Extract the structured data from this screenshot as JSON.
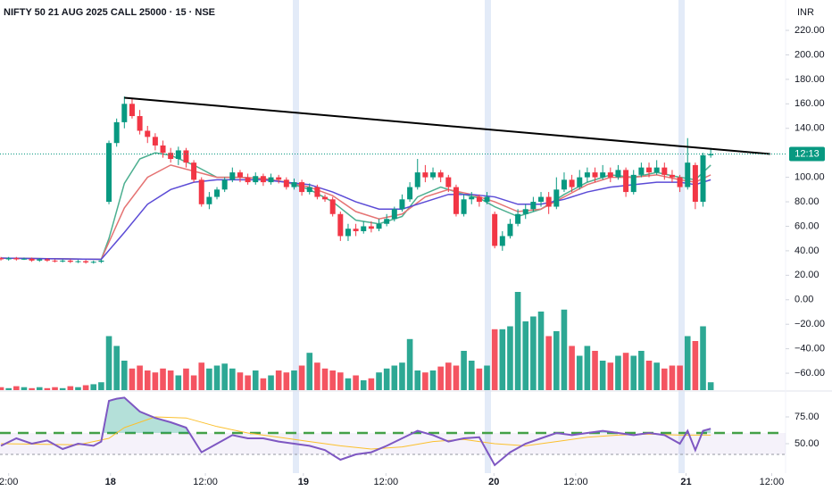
{
  "chart_data": {
    "type": "candlestick",
    "title": "NIFTY 50 21 AUG 2025 CALL 25000 · 15 · NSE",
    "currency": "INR",
    "xlim": [
      -0.12,
      101.7
    ],
    "xticks": [
      {
        "value": 1.0,
        "label": "2:00"
      },
      {
        "value": 14.2,
        "label": "18"
      },
      {
        "value": 26.5,
        "label": "12:00"
      },
      {
        "value": 39.2,
        "label": "19"
      },
      {
        "value": 49.9,
        "label": "12:00"
      },
      {
        "value": 63.9,
        "label": "20"
      },
      {
        "value": 74.5,
        "label": "12:00"
      },
      {
        "value": 88.8,
        "label": "21"
      },
      {
        "value": 99.9,
        "label": "12:00"
      }
    ],
    "ylim": [
      -73.8,
      244.8
    ],
    "yticks": [
      {
        "value": 220,
        "label": "220.00"
      },
      {
        "value": 200,
        "label": "200.00"
      },
      {
        "value": 180,
        "label": "180.00"
      },
      {
        "value": 160,
        "label": "160.00"
      },
      {
        "value": 140,
        "label": "140.00"
      },
      {
        "value": 100,
        "label": "100.00"
      },
      {
        "value": 80,
        "label": "80.00"
      },
      {
        "value": 60,
        "label": "60.00"
      },
      {
        "value": 40,
        "label": "40.00"
      },
      {
        "value": 20,
        "label": "20.00"
      },
      {
        "value": 0,
        "label": "0.00"
      },
      {
        "value": -20,
        "label": "−20.00"
      },
      {
        "value": -40,
        "label": "−40.00"
      },
      {
        "value": -60,
        "label": "−60.00"
      }
    ],
    "up_color": "#089981",
    "down_color": "#f23645",
    "open": [
      34,
      33,
      34,
      33,
      33.5,
      32,
      33,
      32,
      31.5,
      32,
      31,
      31.5,
      30.5,
      31,
      80,
      128,
      145,
      160,
      150,
      138,
      133,
      126,
      120,
      115,
      122,
      112,
      98,
      78,
      84,
      90,
      98,
      104,
      100,
      96,
      101,
      96,
      100,
      98,
      92,
      96,
      88,
      92,
      84,
      82,
      70,
      52,
      58,
      56,
      60,
      58,
      62,
      66,
      74,
      82,
      92,
      104,
      100,
      104,
      100,
      92,
      70,
      82,
      84,
      80,
      70,
      44,
      52,
      62,
      70,
      74,
      80,
      84,
      76,
      90,
      98,
      92,
      100,
      104,
      100,
      104,
      100,
      106,
      88,
      102,
      108,
      104,
      108,
      102,
      100,
      92,
      110,
      80,
      118
    ],
    "high": [
      35,
      35,
      35,
      34.5,
      34.5,
      34,
      34,
      33,
      33,
      33,
      32.5,
      32.5,
      32,
      33,
      130,
      148,
      166,
      165,
      155,
      142,
      136,
      130,
      124,
      125,
      124,
      114,
      100,
      88,
      92,
      100,
      108,
      106,
      103,
      104,
      103,
      103,
      102,
      100,
      99,
      98,
      95,
      94,
      86,
      84,
      72,
      62,
      62,
      64,
      64,
      66,
      70,
      76,
      86,
      96,
      115,
      110,
      108,
      106,
      102,
      94,
      86,
      88,
      86,
      88,
      72,
      56,
      66,
      74,
      78,
      84,
      88,
      88,
      100,
      104,
      102,
      106,
      108,
      108,
      110,
      108,
      110,
      108,
      106,
      112,
      112,
      114,
      112,
      106,
      102,
      132,
      112,
      120,
      124
    ],
    "low": [
      32,
      32,
      32,
      32.5,
      31,
      31,
      31,
      30.5,
      30.5,
      30,
      30,
      29.5,
      29.5,
      30,
      78,
      125,
      140,
      148,
      135,
      128,
      122,
      116,
      112,
      110,
      108,
      96,
      76,
      74,
      82,
      88,
      96,
      96,
      94,
      94,
      93,
      94,
      95,
      90,
      90,
      85,
      86,
      82,
      80,
      68,
      48,
      48,
      52,
      54,
      55,
      56,
      60,
      64,
      72,
      80,
      90,
      96,
      98,
      96,
      88,
      68,
      68,
      78,
      76,
      78,
      42,
      40,
      50,
      60,
      66,
      72,
      76,
      70,
      74,
      88,
      88,
      90,
      96,
      96,
      98,
      96,
      98,
      84,
      86,
      100,
      100,
      102,
      98,
      96,
      88,
      90,
      74,
      76,
      116
    ],
    "close": [
      33,
      34,
      33,
      33.5,
      32,
      33,
      32,
      31.5,
      32,
      31,
      31.5,
      30.5,
      31,
      32,
      128,
      145,
      160,
      150,
      138,
      133,
      126,
      120,
      115,
      122,
      112,
      98,
      78,
      84,
      90,
      98,
      104,
      100,
      96,
      101,
      96,
      100,
      98,
      92,
      96,
      88,
      92,
      84,
      82,
      70,
      52,
      58,
      56,
      60,
      58,
      62,
      66,
      74,
      82,
      92,
      104,
      100,
      104,
      100,
      92,
      70,
      82,
      84,
      80,
      84,
      44,
      52,
      62,
      70,
      74,
      80,
      84,
      76,
      90,
      98,
      92,
      100,
      104,
      100,
      104,
      100,
      106,
      88,
      102,
      108,
      104,
      108,
      102,
      100,
      92,
      112,
      80,
      118,
      119
    ],
    "volume": [
      3,
      2,
      4,
      3,
      2,
      3,
      2,
      3,
      2,
      4,
      3,
      5,
      6,
      8,
      55,
      45,
      30,
      22,
      25,
      20,
      18,
      22,
      20,
      15,
      22,
      15,
      28,
      22,
      25,
      27,
      22,
      18,
      15,
      20,
      12,
      15,
      20,
      18,
      20,
      25,
      38,
      28,
      22,
      20,
      18,
      12,
      15,
      10,
      12,
      18,
      22,
      25,
      28,
      52,
      20,
      18,
      20,
      24,
      28,
      25,
      40,
      30,
      22,
      25,
      62,
      62,
      65,
      100,
      70,
      75,
      80,
      55,
      60,
      82,
      45,
      35,
      45,
      40,
      30,
      28,
      35,
      38,
      35,
      40,
      30,
      28,
      22,
      25,
      25,
      55,
      50,
      65,
      8
    ],
    "volume_lim": [
      0,
      100
    ],
    "ma_lines": [
      {
        "color": "#4caf90",
        "x": [
          0,
          13,
          14,
          16,
          18,
          20,
          22,
          25,
          28,
          31,
          34,
          37,
          40,
          43,
          46,
          49,
          52,
          54,
          57,
          60,
          62,
          64,
          67,
          70,
          73,
          76,
          79,
          82,
          85,
          88,
          90,
          92
        ],
        "values": [
          34,
          33,
          50,
          95,
          115,
          120,
          118,
          110,
          100,
          100,
          99,
          96,
          90,
          80,
          65,
          62,
          68,
          84,
          92,
          86,
          83,
          76,
          68,
          74,
          86,
          96,
          102,
          100,
          104,
          100,
          98,
          110
        ]
      },
      {
        "color": "#e57373",
        "x": [
          0,
          13,
          16,
          19,
          22,
          25,
          28,
          31,
          34,
          37,
          40,
          43,
          46,
          49,
          52,
          55,
          58,
          61,
          64,
          67,
          70,
          73,
          76,
          79,
          82,
          85,
          88,
          90,
          92
        ],
        "values": [
          34,
          33,
          75,
          100,
          110,
          105,
          100,
          100,
          99,
          96,
          92,
          85,
          72,
          66,
          70,
          84,
          90,
          86,
          80,
          72,
          74,
          84,
          94,
          100,
          100,
          102,
          98,
          96,
          102
        ]
      },
      {
        "color": "#5b4bd6",
        "x": [
          0,
          13,
          16,
          19,
          22,
          25,
          28,
          31,
          34,
          37,
          40,
          43,
          46,
          49,
          52,
          55,
          58,
          61,
          64,
          67,
          70,
          73,
          76,
          79,
          82,
          85,
          88,
          90,
          92
        ],
        "values": [
          34,
          33,
          55,
          78,
          90,
          96,
          98,
          98,
          98,
          96,
          94,
          88,
          80,
          74,
          74,
          80,
          86,
          86,
          84,
          78,
          78,
          82,
          88,
          92,
          94,
          96,
          96,
          94,
          98
        ]
      }
    ],
    "trendline": {
      "color": "#000000",
      "x": [
        16,
        99.7
      ],
      "values": [
        165,
        119
      ]
    },
    "last_label": "12:13",
    "rsi": {
      "ylim": [
        22.5,
        97.5
      ],
      "yticks": [
        {
          "value": 75,
          "label": "75.00"
        },
        {
          "value": 50,
          "label": "50.00"
        }
      ],
      "upper": 60,
      "lower": 40,
      "color": "#7e57c2",
      "x": [
        0,
        2,
        4,
        6,
        8,
        10,
        12,
        13,
        14,
        15,
        16,
        18,
        20,
        22,
        24,
        26,
        28,
        30,
        32,
        34,
        36,
        38,
        40,
        42,
        44,
        46,
        48,
        50,
        52,
        54,
        56,
        58,
        60,
        62,
        64,
        66,
        68,
        70,
        72,
        74,
        76,
        78,
        80,
        82,
        84,
        86,
        88,
        89,
        90,
        91,
        92
      ],
      "values": [
        48,
        55,
        50,
        53,
        45,
        50,
        48,
        52,
        90,
        92,
        93,
        80,
        74,
        70,
        65,
        42,
        50,
        58,
        55,
        55,
        52,
        50,
        48,
        44,
        35,
        40,
        42,
        48,
        55,
        62,
        58,
        52,
        55,
        56,
        30,
        42,
        50,
        55,
        60,
        58,
        60,
        62,
        60,
        58,
        60,
        58,
        50,
        62,
        44,
        62,
        64
      ],
      "ma": {
        "color": "#fbc02d",
        "x": [
          0,
          10,
          14,
          16,
          20,
          24,
          28,
          32,
          36,
          40,
          44,
          48,
          52,
          56,
          60,
          64,
          68,
          72,
          76,
          80,
          84,
          88,
          92
        ],
        "values": [
          50,
          49,
          55,
          65,
          75,
          74,
          66,
          60,
          56,
          52,
          48,
          45,
          47,
          52,
          54,
          50,
          48,
          52,
          56,
          58,
          59,
          58,
          58
        ]
      }
    }
  }
}
